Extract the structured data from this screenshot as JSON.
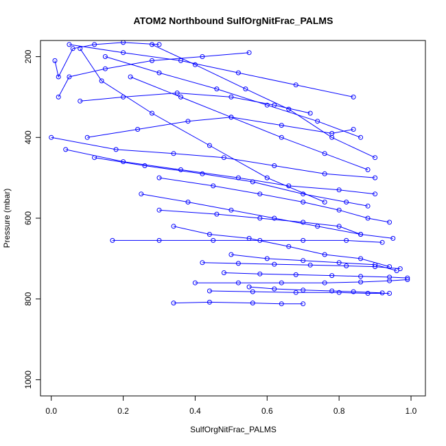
{
  "chart_data": {
    "type": "scatter",
    "title": "ATOM2 Northbound SulfOrgNitFrac_PALMS",
    "xlabel": "SulfOrgNitFrac_PALMS",
    "ylabel": "Pressure (mbar)",
    "xlim": [
      -0.03,
      1.04
    ],
    "ylim": [
      1040,
      160
    ],
    "y_reversed": true,
    "xticks": [
      0.0,
      0.2,
      0.4,
      0.6,
      0.8,
      1.0
    ],
    "xtick_labels": [
      "0.0",
      "0.2",
      "0.4",
      "0.6",
      "0.8",
      "1.0"
    ],
    "yticks": [
      200,
      400,
      600,
      800,
      1000
    ],
    "ytick_labels": [
      "200",
      "400",
      "600",
      "800",
      "1000"
    ],
    "grid": false,
    "legend": "none",
    "color": "#0000ff",
    "series": [
      {
        "x": [
          0.01,
          0.02,
          0.06,
          0.12,
          0.2,
          0.3
        ],
        "y": [
          210,
          250,
          180,
          170,
          165,
          170
        ]
      },
      {
        "x": [
          0.02,
          0.05,
          0.15,
          0.28,
          0.42,
          0.55
        ],
        "y": [
          300,
          250,
          230,
          210,
          200,
          190
        ]
      },
      {
        "x": [
          0.08,
          0.2,
          0.35,
          0.5,
          0.62,
          0.72
        ],
        "y": [
          310,
          300,
          290,
          300,
          320,
          340
        ]
      },
      {
        "x": [
          0.1,
          0.24,
          0.38,
          0.5,
          0.64,
          0.78,
          0.84
        ],
        "y": [
          400,
          380,
          360,
          350,
          370,
          390,
          380
        ]
      },
      {
        "x": [
          0.0,
          0.18,
          0.34,
          0.48,
          0.62,
          0.76,
          0.9
        ],
        "y": [
          400,
          430,
          440,
          450,
          470,
          490,
          500
        ]
      },
      {
        "x": [
          0.04,
          0.2,
          0.36,
          0.52,
          0.66,
          0.8,
          0.9
        ],
        "y": [
          430,
          460,
          480,
          500,
          520,
          530,
          540
        ]
      },
      {
        "x": [
          0.12,
          0.26,
          0.42,
          0.56,
          0.7,
          0.82,
          0.88
        ],
        "y": [
          450,
          470,
          490,
          510,
          540,
          560,
          570
        ]
      },
      {
        "x": [
          0.3,
          0.45,
          0.58,
          0.7,
          0.8,
          0.88,
          0.94
        ],
        "y": [
          500,
          520,
          540,
          560,
          580,
          600,
          610
        ]
      },
      {
        "x": [
          0.25,
          0.38,
          0.5,
          0.62,
          0.74,
          0.86,
          0.95
        ],
        "y": [
          540,
          560,
          580,
          600,
          620,
          640,
          650
        ]
      },
      {
        "x": [
          0.17,
          0.3,
          0.45,
          0.58,
          0.7,
          0.82,
          0.92
        ],
        "y": [
          655,
          655,
          655,
          655,
          655,
          655,
          660
        ]
      },
      {
        "x": [
          0.34,
          0.44,
          0.55,
          0.66,
          0.76,
          0.86,
          0.94
        ],
        "y": [
          620,
          640,
          650,
          670,
          690,
          700,
          720
        ]
      },
      {
        "x": [
          0.42,
          0.52,
          0.62,
          0.72,
          0.82,
          0.9,
          0.97
        ],
        "y": [
          710,
          712,
          714,
          716,
          718,
          720,
          725
        ]
      },
      {
        "x": [
          0.48,
          0.58,
          0.68,
          0.78,
          0.86,
          0.94,
          0.99
        ],
        "y": [
          735,
          738,
          740,
          742,
          744,
          746,
          748
        ]
      },
      {
        "x": [
          0.4,
          0.52,
          0.64,
          0.76,
          0.86,
          0.94,
          0.99
        ],
        "y": [
          760,
          760,
          760,
          760,
          758,
          755,
          752
        ]
      },
      {
        "x": [
          0.44,
          0.56,
          0.68,
          0.8,
          0.88,
          0.94
        ],
        "y": [
          780,
          782,
          784,
          784,
          786,
          786
        ]
      },
      {
        "x": [
          0.34,
          0.44,
          0.56,
          0.64,
          0.7
        ],
        "y": [
          810,
          808,
          810,
          812,
          812
        ]
      },
      {
        "x": [
          0.05,
          0.2,
          0.36,
          0.52,
          0.68,
          0.84
        ],
        "y": [
          170,
          190,
          210,
          240,
          270,
          300
        ]
      },
      {
        "x": [
          0.15,
          0.3,
          0.46,
          0.6,
          0.74,
          0.86
        ],
        "y": [
          200,
          240,
          280,
          320,
          360,
          400
        ]
      },
      {
        "x": [
          0.22,
          0.36,
          0.5,
          0.64,
          0.76,
          0.88
        ],
        "y": [
          250,
          300,
          350,
          400,
          440,
          480
        ]
      },
      {
        "x": [
          0.08,
          0.14,
          0.28,
          0.44,
          0.6,
          0.76
        ],
        "y": [
          180,
          260,
          340,
          420,
          500,
          560
        ]
      },
      {
        "x": [
          0.28,
          0.4,
          0.54,
          0.66,
          0.78,
          0.9
        ],
        "y": [
          170,
          220,
          280,
          330,
          400,
          450
        ]
      },
      {
        "x": [
          0.3,
          0.46,
          0.58,
          0.7,
          0.8,
          0.86
        ],
        "y": [
          580,
          590,
          600,
          610,
          620,
          640
        ]
      },
      {
        "x": [
          0.5,
          0.6,
          0.7,
          0.8,
          0.9,
          0.96
        ],
        "y": [
          690,
          700,
          705,
          710,
          715,
          730
        ]
      },
      {
        "x": [
          0.55,
          0.62,
          0.7,
          0.78,
          0.84,
          0.92
        ],
        "y": [
          770,
          775,
          778,
          780,
          782,
          785
        ]
      }
    ]
  }
}
